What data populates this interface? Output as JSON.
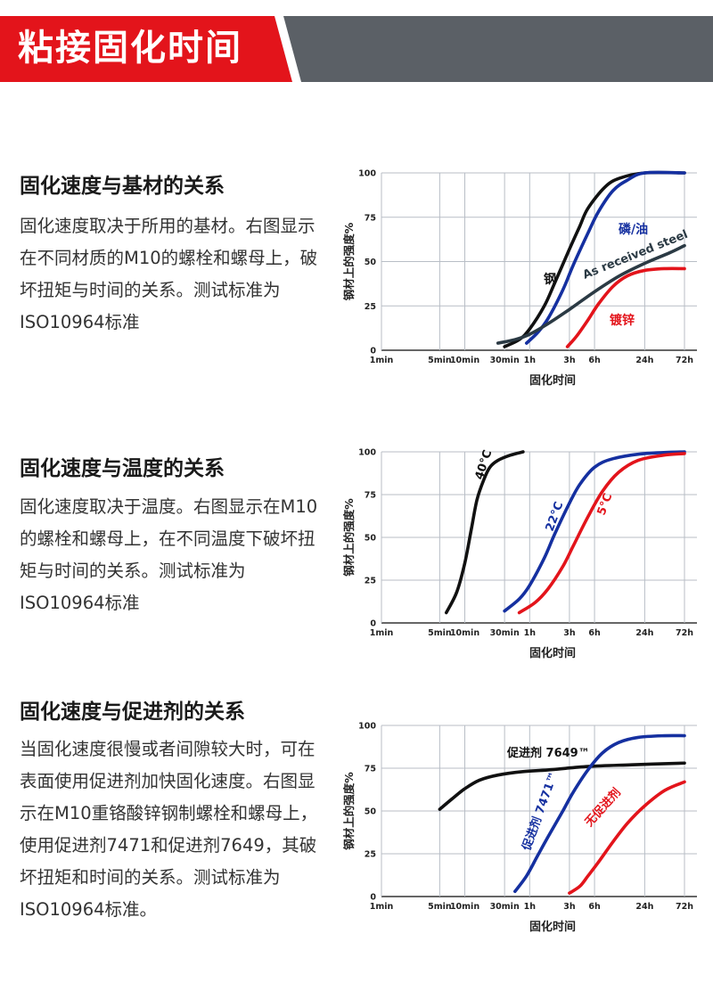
{
  "banner": {
    "title": "粘接固化时间",
    "colors": {
      "red": "#e3141b",
      "gray": "#5b6066"
    }
  },
  "sections": [
    {
      "heading": "固化速度与基材的关系",
      "body": "固化速度取决于所用的基材。右图显示在不同材质的M10的螺栓和螺母上，破坏扭矩与时间的关系。测试标准为ISO10964标准"
    },
    {
      "heading": "固化速度与温度的关系",
      "body": "固化速度取决于温度。右图显示在M10的螺栓和螺母上，在不同温度下破坏扭矩与时间的关系。测试标准为ISO10964标准"
    },
    {
      "heading": "固化速度与促进剂的关系",
      "body": "当固化速度很慢或者间隙较大时，可在表面使用促进剂加快固化速度。右图显示在M10重铬酸锌钢制螺栓和螺母上，使用促进剂7471和促进剂7649，其破坏扭矩和时间的关系。测试标准为ISO10964标准。"
    }
  ],
  "chart_data": [
    {
      "type": "line",
      "title": "",
      "xlabel": "固化时间",
      "ylabel": "钢材上的强度%",
      "ylim": [
        0,
        100
      ],
      "y_ticks": [
        "0",
        "25",
        "50",
        "75",
        "100"
      ],
      "x_ticks": [
        "1min",
        "5min",
        "10min",
        "30min",
        "1h",
        "3h",
        "6h",
        "24h",
        "72h"
      ],
      "x_unit": "log minutes",
      "series": [
        {
          "name": "钢",
          "color": "#111111",
          "label_color": "#111111",
          "x": [
            30,
            45,
            60,
            90,
            120,
            180,
            240,
            300,
            480,
            720,
            1440,
            4320
          ],
          "y": [
            2,
            6,
            12,
            25,
            38,
            57,
            70,
            80,
            92,
            97,
            100,
            100
          ]
        },
        {
          "name": "磷/油",
          "color": "#1530a0",
          "label_color": "#1530a0",
          "x": [
            55,
            75,
            100,
            150,
            200,
            300,
            400,
            600,
            900,
            1440,
            4320
          ],
          "y": [
            4,
            10,
            18,
            34,
            48,
            66,
            78,
            90,
            96,
            100,
            100
          ]
        },
        {
          "name": "As received steel",
          "color": "#2b3a44",
          "label_color": "#2b3a44",
          "x": [
            25,
            40,
            60,
            100,
            180,
            360,
            720,
            1440,
            2880,
            4320
          ],
          "y": [
            4,
            6,
            9,
            15,
            23,
            33,
            42,
            49,
            55,
            59
          ]
        },
        {
          "name": "镀锌",
          "color": "#e3141b",
          "label_color": "#e3141b",
          "x": [
            170,
            220,
            300,
            400,
            600,
            900,
            1440,
            2500,
            4320
          ],
          "y": [
            2,
            8,
            17,
            26,
            36,
            42,
            45,
            46,
            46
          ]
        }
      ]
    },
    {
      "type": "line",
      "title": "",
      "xlabel": "固化时间",
      "ylabel": "钢材上的强度%",
      "ylim": [
        0,
        100
      ],
      "y_ticks": [
        "0",
        "25",
        "50",
        "75",
        "100"
      ],
      "x_ticks": [
        "1min",
        "5min",
        "10min",
        "30min",
        "1h",
        "3h",
        "6h",
        "24h",
        "72h"
      ],
      "x_unit": "log minutes",
      "series": [
        {
          "name": "40°C",
          "color": "#111111",
          "label_color": "#111111",
          "x": [
            6,
            8,
            10,
            12,
            14,
            17,
            20,
            25,
            35,
            50
          ],
          "y": [
            6,
            18,
            35,
            55,
            72,
            84,
            91,
            95,
            98,
            100
          ]
        },
        {
          "name": "22°C",
          "color": "#1530a0",
          "label_color": "#1530a0",
          "x": [
            30,
            45,
            60,
            90,
            120,
            180,
            240,
            360,
            600,
            1440,
            4320
          ],
          "y": [
            7,
            14,
            22,
            38,
            52,
            70,
            81,
            91,
            96,
            99,
            100
          ]
        },
        {
          "name": "5°C",
          "color": "#e3141b",
          "label_color": "#e3141b",
          "x": [
            45,
            70,
            100,
            150,
            200,
            300,
            450,
            700,
            1200,
            2400,
            4320
          ],
          "y": [
            6,
            12,
            20,
            33,
            45,
            62,
            77,
            88,
            95,
            98,
            99
          ]
        }
      ]
    },
    {
      "type": "line",
      "title": "",
      "xlabel": "固化时间",
      "ylabel": "钢材上的强度%",
      "ylim": [
        0,
        100
      ],
      "y_ticks": [
        "0",
        "25",
        "50",
        "75",
        "100"
      ],
      "x_ticks": [
        "1min",
        "5min",
        "10min",
        "30min",
        "1h",
        "3h",
        "6h",
        "24h",
        "72h"
      ],
      "x_unit": "log minutes",
      "series": [
        {
          "name": "促进剂 7649™",
          "color": "#111111",
          "label_color": "#111111",
          "x": [
            5,
            7,
            10,
            15,
            25,
            50,
            100,
            300,
            1000,
            4320
          ],
          "y": [
            51,
            57,
            63,
            68,
            71,
            73,
            74,
            76,
            77,
            78
          ]
        },
        {
          "name": "促进剂 7471™",
          "color": "#1530a0",
          "label_color": "#1530a0",
          "x": [
            40,
            55,
            75,
            100,
            150,
            200,
            300,
            450,
            700,
            1200,
            2500,
            4320
          ],
          "y": [
            3,
            12,
            24,
            35,
            50,
            61,
            74,
            84,
            90,
            93,
            94,
            94
          ]
        },
        {
          "name": "无促进剂",
          "color": "#e3141b",
          "label_color": "#e3141b",
          "x": [
            180,
            240,
            300,
            400,
            600,
            900,
            1440,
            2500,
            4320
          ],
          "y": [
            2,
            6,
            12,
            20,
            32,
            43,
            53,
            62,
            67
          ]
        }
      ]
    }
  ]
}
